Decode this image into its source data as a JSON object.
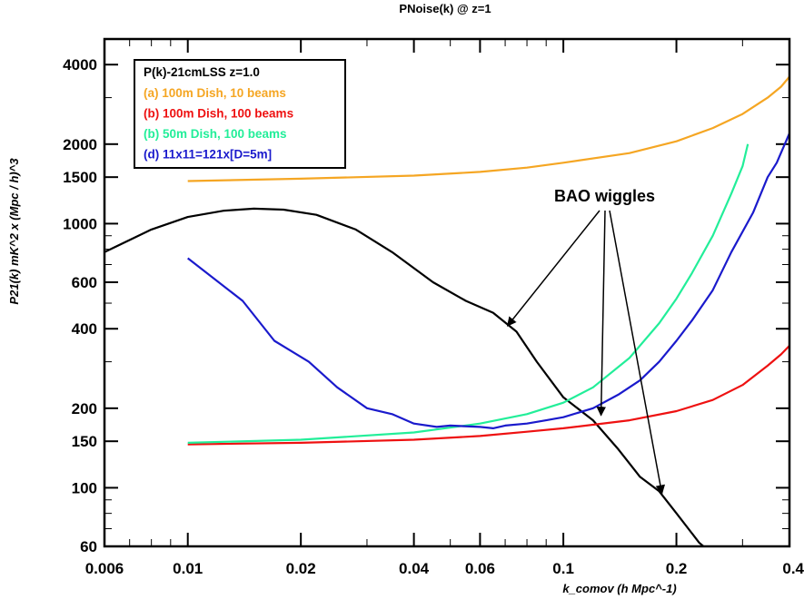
{
  "chart_data": {
    "type": "line",
    "title": "PNoise(k) @ z=1",
    "xlabel": "k_comov  (h Mpc^-1)",
    "ylabel": "P21(k) mK^2 x (Mpc / h)^3",
    "xscale": "log",
    "yscale": "log",
    "xlim": [
      0.006,
      0.4
    ],
    "ylim": [
      60,
      5000
    ],
    "x_ticks": [
      "0.006",
      "0.01",
      "0.02",
      "0.04",
      "0.06",
      "0.1",
      "0.2",
      "0.4"
    ],
    "y_ticks": [
      "60",
      "100",
      "150",
      "200",
      "400",
      "600",
      "1000",
      "1500",
      "2000",
      "4000"
    ],
    "legend": {
      "position": "top-left",
      "title": "P(k)-21cmLSS z=1.0",
      "entries": [
        {
          "label": "(a) 100m Dish, 10 beams",
          "color": "#f5a623"
        },
        {
          "label": "(b) 100m Dish, 100 beams",
          "color": "#ee1111"
        },
        {
          "label": "(b) 50m Dish, 100 beams",
          "color": "#22ee99"
        },
        {
          "label": "(d) 11x11=121x[D=5m]",
          "color": "#1a1acc"
        }
      ]
    },
    "series": [
      {
        "color": "#000000",
        "points": [
          [
            0.006,
            780
          ],
          [
            0.008,
            950
          ],
          [
            0.01,
            1060
          ],
          [
            0.0125,
            1120
          ],
          [
            0.015,
            1140
          ],
          [
            0.018,
            1130
          ],
          [
            0.022,
            1080
          ],
          [
            0.028,
            950
          ],
          [
            0.035,
            780
          ],
          [
            0.045,
            600
          ],
          [
            0.055,
            510
          ],
          [
            0.065,
            460
          ],
          [
            0.075,
            390
          ],
          [
            0.085,
            300
          ],
          [
            0.1,
            220
          ],
          [
            0.12,
            180
          ],
          [
            0.14,
            140
          ],
          [
            0.16,
            110
          ],
          [
            0.18,
            97
          ],
          [
            0.2,
            80
          ],
          [
            0.23,
            62
          ],
          [
            0.25,
            56
          ]
        ]
      },
      {
        "color": "#f5a623",
        "points": [
          [
            0.01,
            1450
          ],
          [
            0.02,
            1480
          ],
          [
            0.04,
            1520
          ],
          [
            0.06,
            1570
          ],
          [
            0.08,
            1630
          ],
          [
            0.1,
            1700
          ],
          [
            0.15,
            1850
          ],
          [
            0.2,
            2050
          ],
          [
            0.25,
            2300
          ],
          [
            0.3,
            2600
          ],
          [
            0.35,
            3000
          ],
          [
            0.38,
            3300
          ],
          [
            0.4,
            3600
          ]
        ]
      },
      {
        "color": "#ee1111",
        "points": [
          [
            0.01,
            146
          ],
          [
            0.02,
            148
          ],
          [
            0.04,
            152
          ],
          [
            0.06,
            157
          ],
          [
            0.08,
            163
          ],
          [
            0.1,
            168
          ],
          [
            0.15,
            180
          ],
          [
            0.2,
            195
          ],
          [
            0.25,
            215
          ],
          [
            0.3,
            245
          ],
          [
            0.35,
            290
          ],
          [
            0.38,
            320
          ],
          [
            0.4,
            345
          ]
        ]
      },
      {
        "color": "#22ee99",
        "points": [
          [
            0.01,
            148
          ],
          [
            0.02,
            152
          ],
          [
            0.04,
            162
          ],
          [
            0.06,
            175
          ],
          [
            0.08,
            190
          ],
          [
            0.1,
            210
          ],
          [
            0.12,
            240
          ],
          [
            0.15,
            310
          ],
          [
            0.18,
            420
          ],
          [
            0.2,
            520
          ],
          [
            0.22,
            650
          ],
          [
            0.25,
            900
          ],
          [
            0.28,
            1300
          ],
          [
            0.3,
            1650
          ],
          [
            0.31,
            2000
          ]
        ]
      },
      {
        "color": "#1a1acc",
        "points": [
          [
            0.01,
            740
          ],
          [
            0.014,
            510
          ],
          [
            0.017,
            360
          ],
          [
            0.021,
            300
          ],
          [
            0.025,
            240
          ],
          [
            0.03,
            200
          ],
          [
            0.035,
            190
          ],
          [
            0.04,
            175
          ],
          [
            0.046,
            170
          ],
          [
            0.05,
            172
          ],
          [
            0.06,
            170
          ],
          [
            0.065,
            168
          ],
          [
            0.07,
            172
          ],
          [
            0.08,
            175
          ],
          [
            0.09,
            180
          ],
          [
            0.1,
            185
          ],
          [
            0.12,
            200
          ],
          [
            0.14,
            225
          ],
          [
            0.16,
            255
          ],
          [
            0.18,
            300
          ],
          [
            0.2,
            360
          ],
          [
            0.22,
            430
          ],
          [
            0.25,
            560
          ],
          [
            0.28,
            780
          ],
          [
            0.32,
            1100
          ],
          [
            0.35,
            1500
          ],
          [
            0.37,
            1700
          ],
          [
            0.4,
            2200
          ]
        ]
      }
    ],
    "annotation": {
      "text": "BAO wiggles",
      "targets": [
        [
          0.071,
          410
        ],
        [
          0.126,
          188
        ],
        [
          0.183,
          95
        ]
      ]
    }
  }
}
